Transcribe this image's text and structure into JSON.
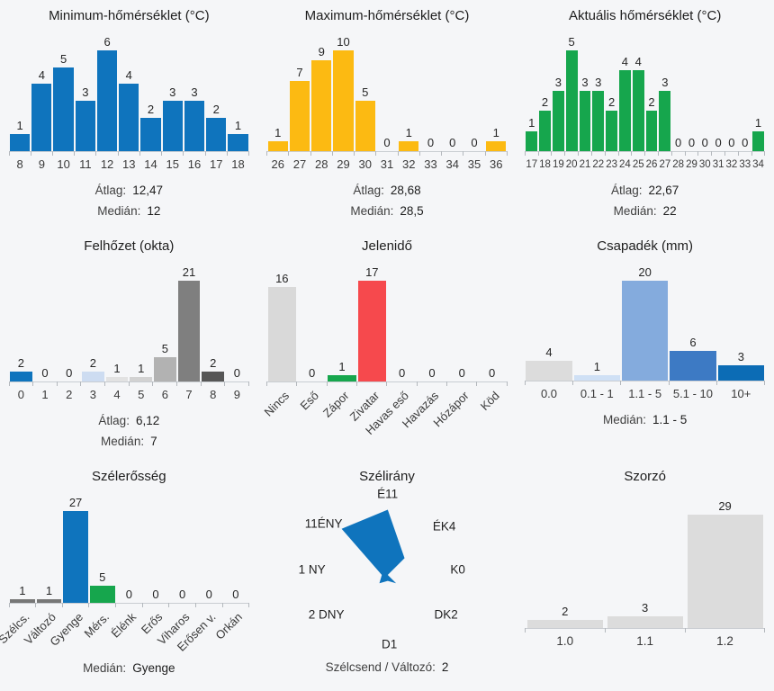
{
  "theme": {
    "background": "#f5f6f8",
    "axis_line": "#c9cdd2",
    "tick": "#b3b8bd",
    "title_text": "#1d1d1d",
    "label_text": "#3a3a3a",
    "value_text": "#262626",
    "blue": "#0f74bd",
    "yellow": "#fcba12",
    "green": "#16a64d",
    "red": "#f6494d",
    "light_gray": "#d9d9d9"
  },
  "chart_data": [
    {
      "id": "min_temp",
      "type": "bar",
      "title": "Minimum-hőmérséklet (°C)",
      "categories": [
        "8",
        "9",
        "10",
        "11",
        "12",
        "13",
        "14",
        "15",
        "16",
        "17",
        "18"
      ],
      "values": [
        1,
        4,
        5,
        3,
        6,
        4,
        2,
        3,
        3,
        2,
        1
      ],
      "color": "#0f74bd",
      "stats": [
        {
          "label": "Átlag:",
          "value": "12,47"
        },
        {
          "label": "Medián:",
          "value": "12"
        }
      ],
      "rotated_labels": false,
      "max_bar_height": 112,
      "top_gap": 10,
      "xlabel_font": 13
    },
    {
      "id": "max_temp",
      "type": "bar",
      "title": "Maximum-hőmérséklet (°C)",
      "categories": [
        "26",
        "27",
        "28",
        "29",
        "30",
        "31",
        "32",
        "33",
        "34",
        "35",
        "36"
      ],
      "values": [
        1,
        7,
        9,
        10,
        5,
        0,
        1,
        0,
        0,
        0,
        1
      ],
      "color": "#fcba12",
      "stats": [
        {
          "label": "Átlag:",
          "value": "28,68"
        },
        {
          "label": "Medián:",
          "value": "28,5"
        }
      ],
      "rotated_labels": false,
      "max_bar_height": 112,
      "top_gap": 10,
      "xlabel_font": 13
    },
    {
      "id": "akt_temp",
      "type": "bar",
      "title": "Aktuális hőmérséklet (°C)",
      "categories": [
        "17",
        "18",
        "19",
        "20",
        "21",
        "22",
        "23",
        "24",
        "25",
        "26",
        "27",
        "28",
        "29",
        "30",
        "31",
        "32",
        "33",
        "34"
      ],
      "values": [
        1,
        2,
        3,
        5,
        3,
        3,
        2,
        4,
        4,
        2,
        3,
        0,
        0,
        0,
        0,
        0,
        0,
        1
      ],
      "color": "#16a64d",
      "stats": [
        {
          "label": "Átlag:",
          "value": "22,67"
        },
        {
          "label": "Medián:",
          "value": "22"
        }
      ],
      "rotated_labels": false,
      "max_bar_height": 112,
      "top_gap": 10,
      "xlabel_font": 11.5
    },
    {
      "id": "felhozet",
      "type": "bar",
      "title": "Felhőzet (okta)",
      "categories": [
        "0",
        "1",
        "2",
        "3",
        "4",
        "5",
        "6",
        "7",
        "8",
        "9"
      ],
      "values": [
        2,
        0,
        0,
        2,
        1,
        1,
        5,
        21,
        2,
        0
      ],
      "colors": [
        "#0f74bd",
        "#d9d9d9",
        "#d9d9d9",
        "#cddcf1",
        "#e2e2e2",
        "#d2d2d2",
        "#b2b2b2",
        "#7f7f7f",
        "#565656",
        "#d9d9d9"
      ],
      "stats": [
        {
          "label": "Átlag:",
          "value": "6,12"
        },
        {
          "label": "Medián:",
          "value": "7"
        }
      ],
      "rotated_labels": false,
      "max_bar_height": 112,
      "top_gap": 10,
      "xlabel_font": 13
    },
    {
      "id": "jelenido",
      "type": "bar",
      "title": "Jelenidő",
      "categories": [
        "Nincs",
        "Eső",
        "Zápor",
        "Zivatar",
        "Havas eső",
        "Havazás",
        "Hózápor",
        "Köd"
      ],
      "values": [
        16,
        0,
        1,
        17,
        0,
        0,
        0,
        0
      ],
      "colors": [
        "#d9d9d9",
        "#d9d9d9",
        "#16a64d",
        "#f6494d",
        "#d9d9d9",
        "#d9d9d9",
        "#d9d9d9",
        "#d9d9d9"
      ],
      "stats": [],
      "rotated_labels": true,
      "max_bar_height": 112,
      "top_gap": 10,
      "xlabel_font": 13
    },
    {
      "id": "csapadek",
      "type": "bar",
      "title": "Csapadék (mm)",
      "categories": [
        "0.0",
        "0.1 - 1",
        "1.1 - 5",
        "5.1 - 10",
        "10+"
      ],
      "values": [
        4,
        1,
        20,
        6,
        3
      ],
      "colors": [
        "#dcdcdc",
        "#cfe0f5",
        "#84abdd",
        "#3d7ac4",
        "#0c6cb5"
      ],
      "stats": [
        {
          "label": "Medián:",
          "value": "1.1 - 5"
        }
      ],
      "rotated_labels": false,
      "max_bar_height": 111,
      "top_gap": 10,
      "xlabel_font": 13
    },
    {
      "id": "szelerosseg",
      "type": "bar",
      "title": "Szélerősség",
      "categories": [
        "Szélcs.",
        "Változó",
        "Gyenge",
        "Mérs.",
        "Élénk",
        "Erős",
        "Viharos",
        "Erősen v.",
        "Orkán"
      ],
      "values": [
        1,
        1,
        27,
        5,
        0,
        0,
        0,
        0,
        0
      ],
      "colors": [
        "#777777",
        "#777777",
        "#0f74bd",
        "#16a64d",
        "#d9d9d9",
        "#d9d9d9",
        "#d9d9d9",
        "#d9d9d9",
        "#d9d9d9"
      ],
      "stats": [
        {
          "label": "Medián:",
          "value": "Gyenge"
        }
      ],
      "rotated_labels": true,
      "max_bar_height": 102,
      "top_gap": 10,
      "xlabel_font": 13
    },
    {
      "id": "szelirany",
      "type": "radar",
      "title": "Szélirány",
      "color": "#0f74bd",
      "directions": [
        {
          "name": "É",
          "value": 11,
          "label": "É11"
        },
        {
          "name": "ÉK",
          "value": 4,
          "label": "ÉK4"
        },
        {
          "name": "K",
          "value": 0,
          "label": "K0"
        },
        {
          "name": "DK",
          "value": 2,
          "label": "DK2"
        },
        {
          "name": "D",
          "value": 1,
          "label": "D1"
        },
        {
          "name": "DNY",
          "value": 2,
          "label": "2 DNY"
        },
        {
          "name": "NY",
          "value": 1,
          "label": "1 NY"
        },
        {
          "name": "ÉNY",
          "value": 11,
          "label": "11ÉNY"
        }
      ],
      "stats": [
        {
          "label": "Szélcsend / Változó:",
          "value": "2"
        }
      ]
    },
    {
      "id": "szorzo",
      "type": "bar",
      "title": "Szorzó",
      "categories": [
        "1.0",
        "1.1",
        "1.2"
      ],
      "values": [
        2,
        3,
        29
      ],
      "color": "#dcdcdc",
      "stats": [],
      "rotated_labels": false,
      "max_bar_height": 126,
      "top_gap": 14,
      "xlabel_font": 13.5,
      "slot_pad": 2.5
    }
  ]
}
